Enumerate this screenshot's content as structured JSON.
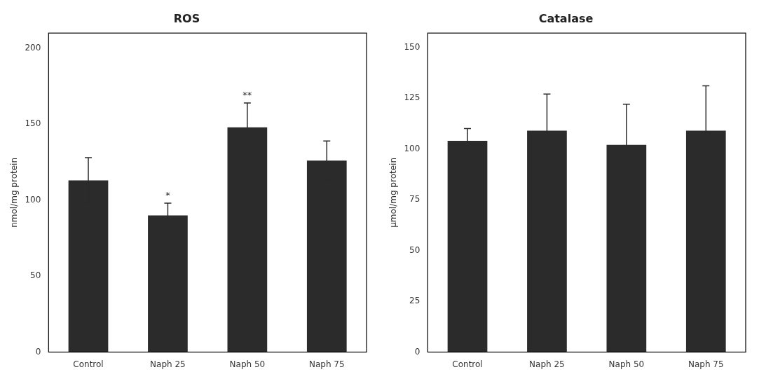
{
  "chart_data": [
    {
      "type": "bar",
      "title": "ROS",
      "categories": [
        "Control",
        "Naph 25",
        "Naph 50",
        "Naph 75"
      ],
      "values": [
        113,
        90,
        148,
        126
      ],
      "errors": [
        15,
        8,
        16,
        13
      ],
      "ylabel": "nmol/mg protein",
      "ylim": [
        0,
        210
      ],
      "yticks": [
        0,
        50,
        100,
        150,
        200
      ],
      "annotations": [
        {
          "category": "Naph 25",
          "text": "*"
        },
        {
          "category": "Naph 50",
          "text": "**"
        }
      ],
      "color": "#2b2b2b",
      "grid": false
    },
    {
      "type": "bar",
      "title": "Catalase",
      "categories": [
        "Control",
        "Naph 25",
        "Naph 50",
        "Naph 75"
      ],
      "values": [
        104,
        109,
        102,
        109
      ],
      "errors": [
        6,
        18,
        20,
        22
      ],
      "ylabel": "μmol/mg protein",
      "ylim": [
        0,
        157
      ],
      "yticks": [
        0,
        25,
        50,
        75,
        100,
        125,
        150
      ],
      "color": "#2b2b2b",
      "grid": false
    }
  ]
}
